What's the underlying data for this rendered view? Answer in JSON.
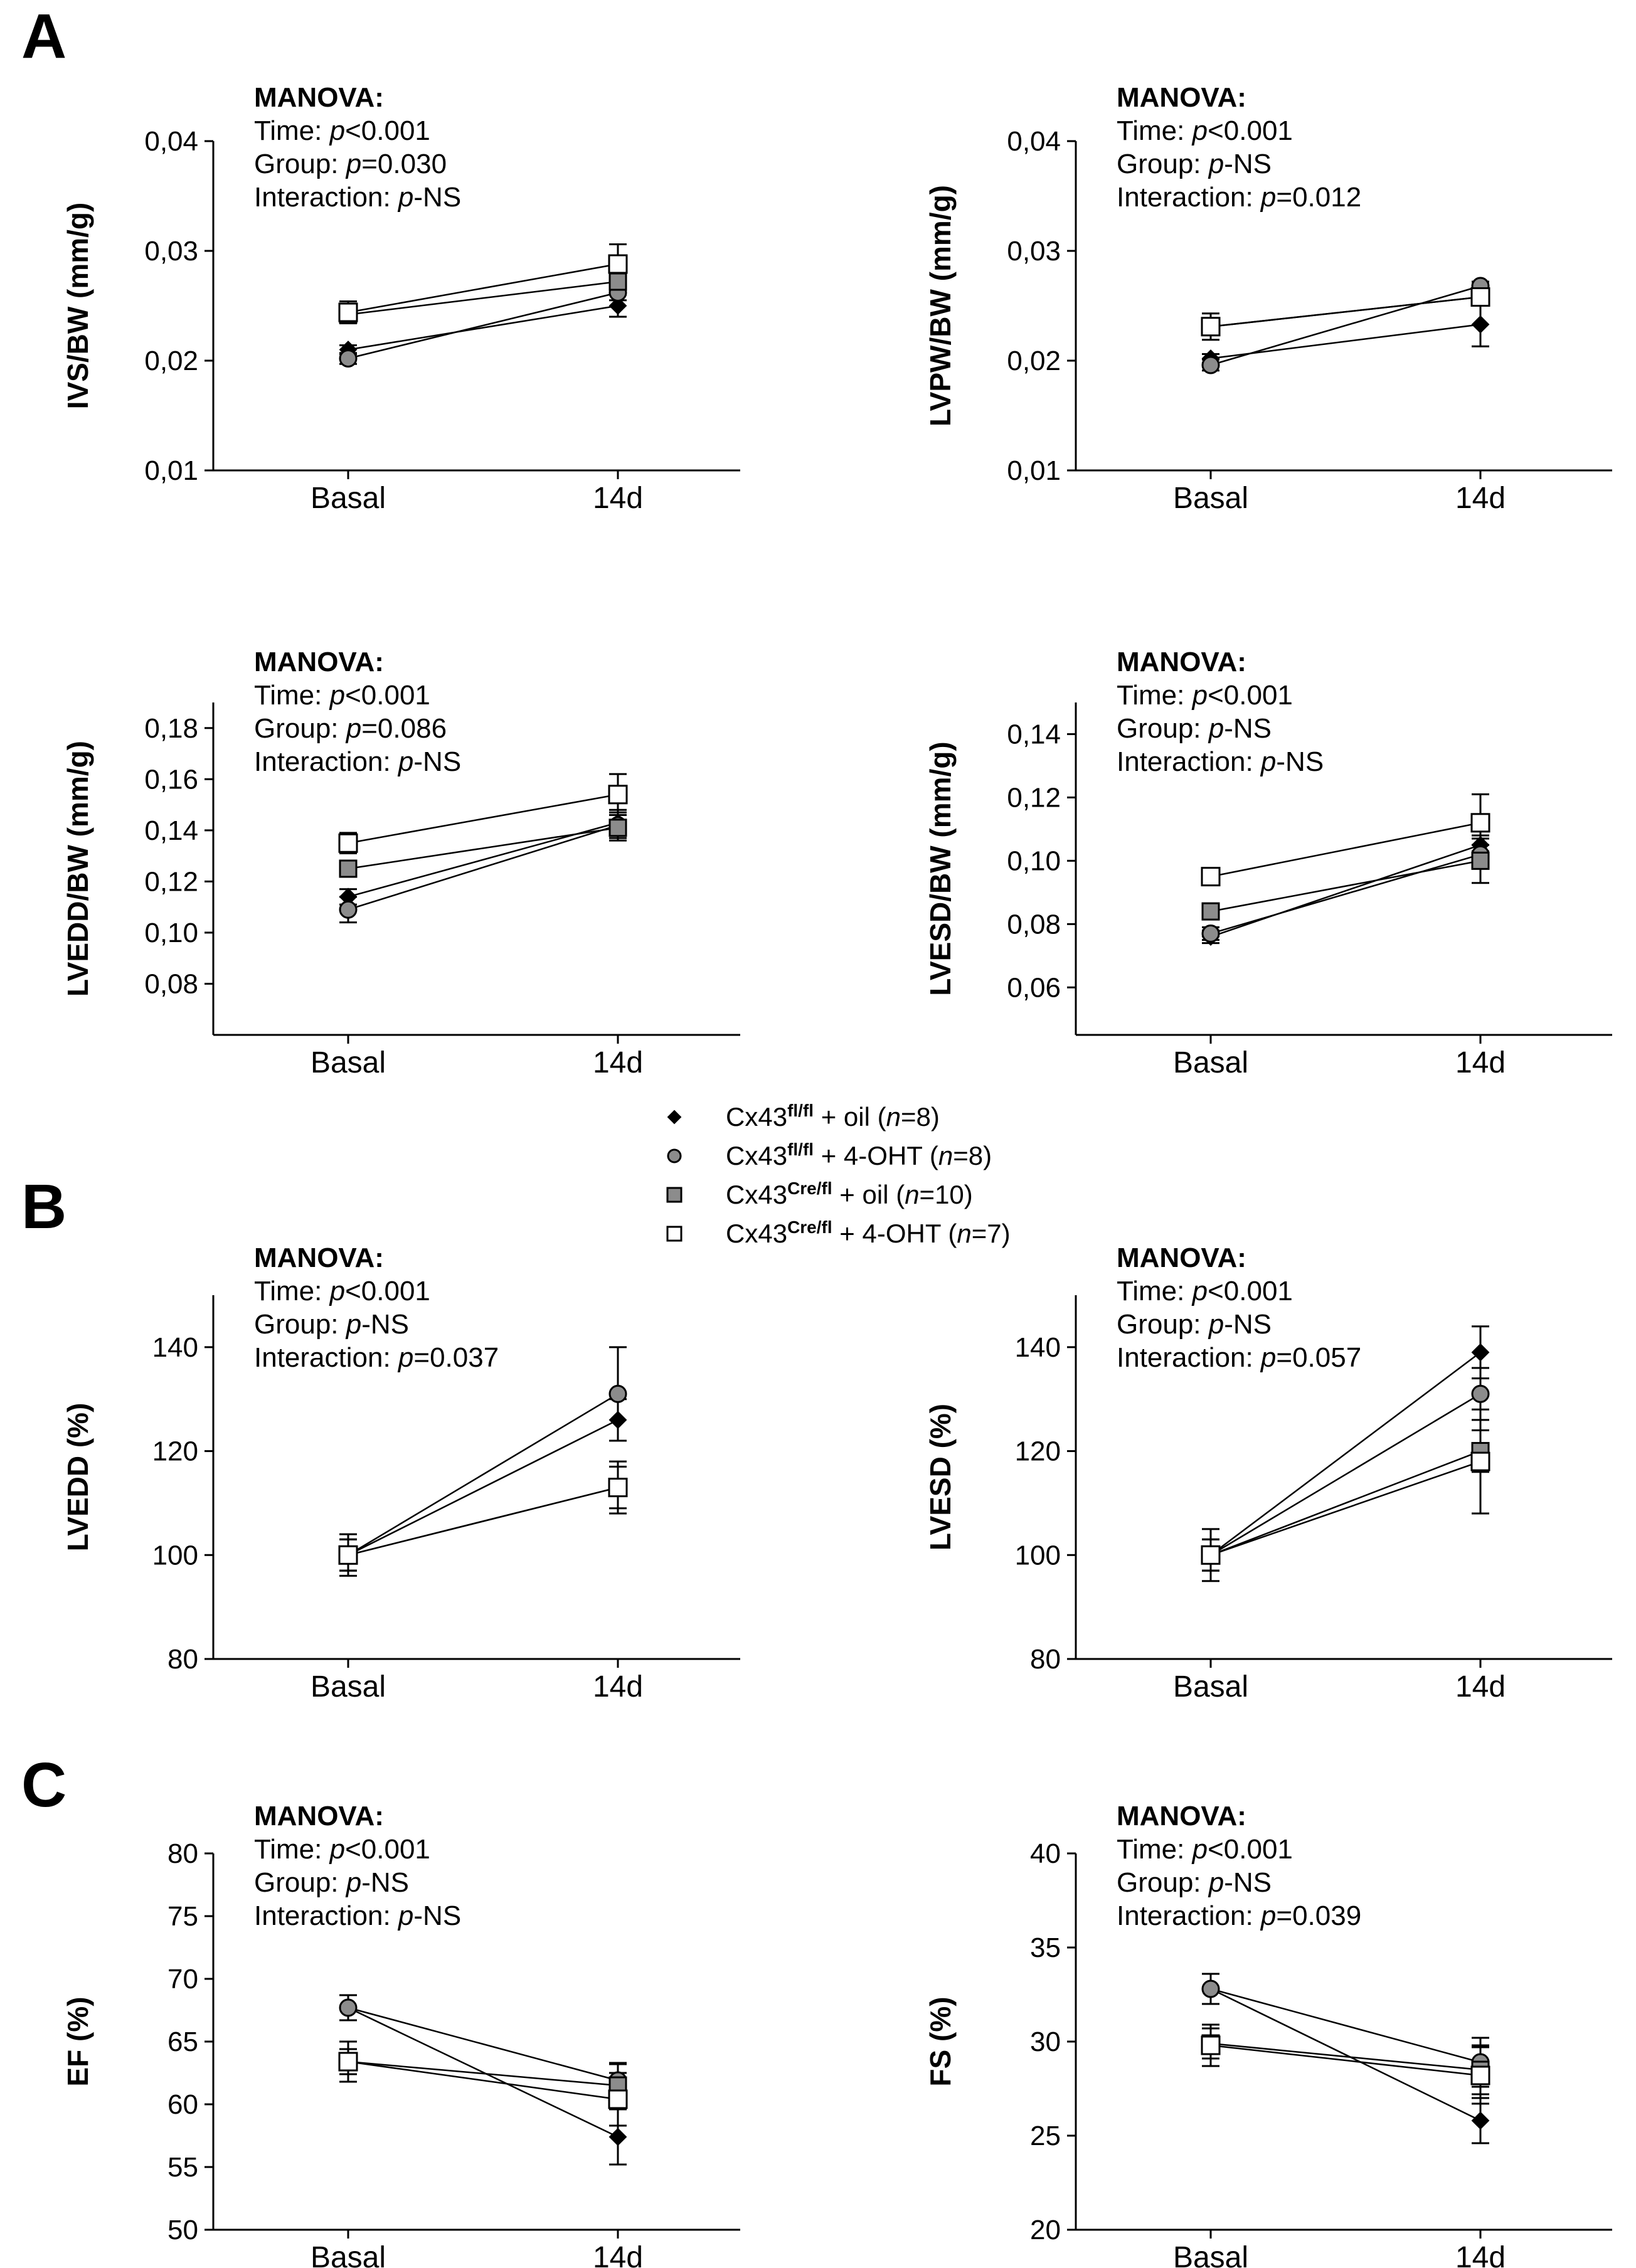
{
  "panel_labels": [
    "A",
    "B",
    "C"
  ],
  "legend": [
    {
      "prefix": "Cx43",
      "sup": "fl/fl",
      "rest": " + oil (",
      "n_label": "n",
      "n_rest": "=8)",
      "marker": "diamond",
      "fill": "#000000"
    },
    {
      "prefix": "Cx43",
      "sup": "fl/fl",
      "rest": " + 4-OHT (",
      "n_label": "n",
      "n_rest": "=8)",
      "marker": "circle",
      "fill": "#8c8c8c"
    },
    {
      "prefix": "Cx43",
      "sup": "Cre/fl",
      "rest": " + oil (",
      "n_label": "n",
      "n_rest": "=10)",
      "marker": "square",
      "fill": "#8c8c8c"
    },
    {
      "prefix": "Cx43",
      "sup": "Cre/fl",
      "rest": " + 4-OHT (",
      "n_label": "n",
      "n_rest": "=7)",
      "marker": "square",
      "fill": "#ffffff"
    }
  ],
  "colors": {
    "black": "#000000",
    "gray": "#8c8c8c",
    "white": "#ffffff"
  },
  "chart_data": [
    {
      "type": "line",
      "panel": "A",
      "ylabel": "IVS/BW (mm/g)",
      "categories": [
        "Basal",
        "14d"
      ],
      "ylim": [
        0.01,
        0.04
      ],
      "yticks": [
        0.01,
        0.02,
        0.03,
        0.04
      ],
      "ytick_labels": [
        "0,01",
        "0,02",
        "0,03",
        "0,04"
      ],
      "manova": {
        "title": "MANOVA:",
        "lines": [
          {
            "label": "Time: ",
            "p": "p",
            "value": "<0.001"
          },
          {
            "label": "Group: ",
            "p": "p",
            "value": "=0.030"
          },
          {
            "label": "Interaction: ",
            "p": "p",
            "value": "-NS"
          }
        ]
      },
      "series": [
        {
          "name": "Cx43fl/fl + oil",
          "values": [
            0.021,
            0.025
          ],
          "errors": [
            0.0004,
            0.001
          ]
        },
        {
          "name": "Cx43fl/fl + 4-OHT",
          "values": [
            0.0202,
            0.0262
          ],
          "errors": [
            0.0005,
            0.0007
          ]
        },
        {
          "name": "Cx43Cre/fl + oil",
          "values": [
            0.0242,
            0.0272
          ],
          "errors": [
            0.0005,
            0.0007
          ]
        },
        {
          "name": "Cx43Cre/fl + 4-OHT",
          "values": [
            0.0244,
            0.0288
          ],
          "errors": [
            0.001,
            0.0018
          ]
        }
      ]
    },
    {
      "type": "line",
      "panel": "A",
      "ylabel": "LVPW/BW (mm/g)",
      "categories": [
        "Basal",
        "14d"
      ],
      "ylim": [
        0.01,
        0.04
      ],
      "yticks": [
        0.01,
        0.02,
        0.03,
        0.04
      ],
      "ytick_labels": [
        "0,01",
        "0,02",
        "0,03",
        "0,04"
      ],
      "manova": {
        "title": "MANOVA:",
        "lines": [
          {
            "label": "Time: ",
            "p": "p",
            "value": "<0.001"
          },
          {
            "label": "Group: ",
            "p": "p",
            "value": "-NS"
          },
          {
            "label": "Interaction: ",
            "p": "p",
            "value": "=0.012"
          }
        ]
      },
      "series": [
        {
          "name": "Cx43fl/fl + oil",
          "values": [
            0.0202,
            0.0233
          ],
          "errors": [
            0.0004,
            0.002
          ]
        },
        {
          "name": "Cx43fl/fl + 4-OHT",
          "values": [
            0.0196,
            0.0268
          ],
          "errors": [
            0.0005,
            0.0004
          ]
        },
        {
          "name": "Cx43Cre/fl + oil",
          "values": [
            0.0231,
            0.0258
          ],
          "errors": [
            0.0005,
            0.0006
          ]
        },
        {
          "name": "Cx43Cre/fl + 4-OHT",
          "values": [
            0.0231,
            0.0258
          ],
          "errors": [
            0.0012,
            0.0008
          ]
        }
      ]
    },
    {
      "type": "line",
      "panel": "A",
      "ylabel": "LVEDD/BW (mm/g)",
      "categories": [
        "Basal",
        "14d"
      ],
      "ylim": [
        0.06,
        0.19
      ],
      "yticks": [
        0.08,
        0.1,
        0.12,
        0.14,
        0.16,
        0.18
      ],
      "ytick_labels": [
        "0,08",
        "0,10",
        "0,12",
        "0,14",
        "0,16",
        "0,18"
      ],
      "manova": {
        "title": "MANOVA:",
        "lines": [
          {
            "label": "Time: ",
            "p": "p",
            "value": "<0.001"
          },
          {
            "label": "Group: ",
            "p": "p",
            "value": "=0.086"
          },
          {
            "label": "Interaction: ",
            "p": "p",
            "value": "-NS"
          }
        ]
      },
      "series": [
        {
          "name": "Cx43fl/fl + oil",
          "values": [
            0.114,
            0.143
          ],
          "errors": [
            0.003,
            0.005
          ]
        },
        {
          "name": "Cx43fl/fl + 4-OHT",
          "values": [
            0.109,
            0.142
          ],
          "errors": [
            0.005,
            0.005
          ]
        },
        {
          "name": "Cx43Cre/fl + oil",
          "values": [
            0.125,
            0.141
          ],
          "errors": [
            0.003,
            0.005
          ]
        },
        {
          "name": "Cx43Cre/fl + 4-OHT",
          "values": [
            0.135,
            0.154
          ],
          "errors": [
            0.004,
            0.008
          ]
        }
      ]
    },
    {
      "type": "line",
      "panel": "A",
      "ylabel": "LVESD/BW (mm/g)",
      "categories": [
        "Basal",
        "14d"
      ],
      "ylim": [
        0.045,
        0.15
      ],
      "yticks": [
        0.06,
        0.08,
        0.1,
        0.12,
        0.14
      ],
      "ytick_labels": [
        "0,06",
        "0,08",
        "0,10",
        "0,12",
        "0,14"
      ],
      "manova": {
        "title": "MANOVA:",
        "lines": [
          {
            "label": "Time: ",
            "p": "p",
            "value": "<0.001"
          },
          {
            "label": "Group: ",
            "p": "p",
            "value": "-NS"
          },
          {
            "label": "Interaction: ",
            "p": "p",
            "value": "-NS"
          }
        ]
      },
      "series": [
        {
          "name": "Cx43fl/fl + oil",
          "values": [
            0.076,
            0.105
          ],
          "errors": [
            0.002,
            0.003
          ]
        },
        {
          "name": "Cx43fl/fl + 4-OHT",
          "values": [
            0.077,
            0.102
          ],
          "errors": [
            0.002,
            0.003
          ]
        },
        {
          "name": "Cx43Cre/fl + oil",
          "values": [
            0.084,
            0.1
          ],
          "errors": [
            0.002,
            0.007
          ]
        },
        {
          "name": "Cx43Cre/fl + 4-OHT",
          "values": [
            0.095,
            0.112
          ],
          "errors": [
            0.001,
            0.009
          ]
        }
      ]
    },
    {
      "type": "line",
      "panel": "B",
      "ylabel": "LVEDD (%)",
      "categories": [
        "Basal",
        "14d"
      ],
      "ylim": [
        80,
        150
      ],
      "yticks": [
        80,
        100,
        120,
        140
      ],
      "ytick_labels": [
        "80",
        "100",
        "120",
        "140"
      ],
      "manova": {
        "title": "MANOVA:",
        "lines": [
          {
            "label": "Time: ",
            "p": "p",
            "value": "<0.001"
          },
          {
            "label": "Group: ",
            "p": "p",
            "value": "-NS"
          },
          {
            "label": "Interaction: ",
            "p": "p",
            "value": "=0.037"
          }
        ]
      },
      "series": [
        {
          "name": "Cx43fl/fl + oil",
          "values": [
            100,
            126
          ],
          "errors": [
            3,
            4
          ]
        },
        {
          "name": "Cx43fl/fl + 4-OHT",
          "values": [
            100,
            131
          ],
          "errors": [
            3,
            9
          ]
        },
        {
          "name": "Cx43Cre/fl + oil",
          "values": [
            100,
            113
          ],
          "errors": [
            3,
            4
          ]
        },
        {
          "name": "Cx43Cre/fl + 4-OHT",
          "values": [
            100,
            113
          ],
          "errors": [
            4,
            5
          ]
        }
      ]
    },
    {
      "type": "line",
      "panel": "B",
      "ylabel": "LVESD (%)",
      "categories": [
        "Basal",
        "14d"
      ],
      "ylim": [
        80,
        150
      ],
      "yticks": [
        80,
        100,
        120,
        140
      ],
      "ytick_labels": [
        "80",
        "100",
        "120",
        "140"
      ],
      "manova": {
        "title": "MANOVA:",
        "lines": [
          {
            "label": "Time: ",
            "p": "p",
            "value": "<0.001"
          },
          {
            "label": "Group: ",
            "p": "p",
            "value": "-NS"
          },
          {
            "label": "Interaction: ",
            "p": "p",
            "value": "=0.057"
          }
        ]
      },
      "series": [
        {
          "name": "Cx43fl/fl + oil",
          "values": [
            100,
            139
          ],
          "errors": [
            3,
            5
          ]
        },
        {
          "name": "Cx43fl/fl + 4-OHT",
          "values": [
            100,
            131
          ],
          "errors": [
            3,
            5
          ]
        },
        {
          "name": "Cx43Cre/fl + oil",
          "values": [
            100,
            120
          ],
          "errors": [
            3,
            4
          ]
        },
        {
          "name": "Cx43Cre/fl + 4-OHT",
          "values": [
            100,
            118
          ],
          "errors": [
            5,
            10
          ]
        }
      ]
    },
    {
      "type": "line",
      "panel": "C",
      "ylabel": "EF (%)",
      "categories": [
        "Basal",
        "14d"
      ],
      "ylim": [
        50,
        80
      ],
      "yticks": [
        50,
        55,
        60,
        65,
        70,
        75,
        80
      ],
      "ytick_labels": [
        "50",
        "55",
        "60",
        "65",
        "70",
        "75",
        "80"
      ],
      "manova": {
        "title": "MANOVA:",
        "lines": [
          {
            "label": "Time: ",
            "p": "p",
            "value": "<0.001"
          },
          {
            "label": "Group: ",
            "p": "p",
            "value": "-NS"
          },
          {
            "label": "Interaction: ",
            "p": "p",
            "value": "-NS"
          }
        ]
      },
      "series": [
        {
          "name": "Cx43fl/fl + oil",
          "values": [
            67.7,
            57.4
          ],
          "errors": [
            1,
            2.2
          ]
        },
        {
          "name": "Cx43fl/fl + 4-OHT",
          "values": [
            67.7,
            61.9
          ],
          "errors": [
            1,
            1.4
          ]
        },
        {
          "name": "Cx43Cre/fl + oil",
          "values": [
            63.4,
            61.5
          ],
          "errors": [
            1,
            1.7
          ]
        },
        {
          "name": "Cx43Cre/fl + 4-OHT",
          "values": [
            63.4,
            60.4
          ],
          "errors": [
            1.6,
            2.1
          ]
        }
      ]
    },
    {
      "type": "line",
      "panel": "C",
      "ylabel": "FS (%)",
      "categories": [
        "Basal",
        "14d"
      ],
      "ylim": [
        20,
        40
      ],
      "yticks": [
        20,
        25,
        30,
        35,
        40
      ],
      "ytick_labels": [
        "20",
        "25",
        "30",
        "35",
        "40"
      ],
      "manova": {
        "title": "MANOVA:",
        "lines": [
          {
            "label": "Time: ",
            "p": "p",
            "value": "<0.001"
          },
          {
            "label": "Group: ",
            "p": "p",
            "value": "-NS"
          },
          {
            "label": "Interaction: ",
            "p": "p",
            "value": "=0.039"
          }
        ]
      },
      "series": [
        {
          "name": "Cx43fl/fl + oil",
          "values": [
            32.8,
            25.8
          ],
          "errors": [
            0.8,
            1.2
          ]
        },
        {
          "name": "Cx43fl/fl + 4-OHT",
          "values": [
            32.8,
            28.9
          ],
          "errors": [
            0.8,
            1.3
          ]
        },
        {
          "name": "Cx43Cre/fl + oil",
          "values": [
            29.9,
            28.5
          ],
          "errors": [
            0.8,
            1.3
          ]
        },
        {
          "name": "Cx43Cre/fl + 4-OHT",
          "values": [
            29.8,
            28.2
          ],
          "errors": [
            1.1,
            1.5
          ]
        }
      ]
    }
  ]
}
